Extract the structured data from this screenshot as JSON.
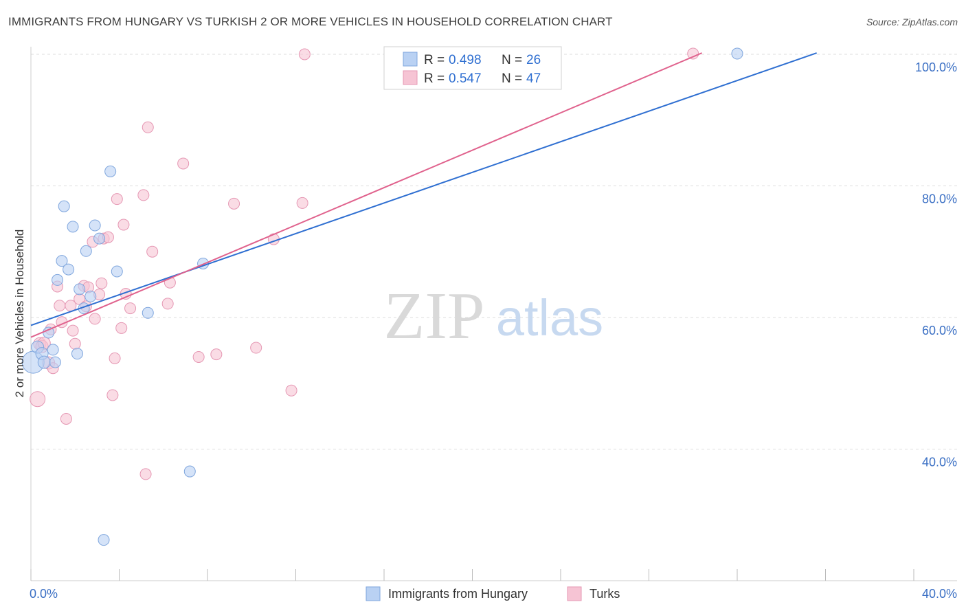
{
  "title": "IMMIGRANTS FROM HUNGARY VS TURKISH 2 OR MORE VEHICLES IN HOUSEHOLD CORRELATION CHART",
  "source": "Source: ZipAtlas.com",
  "watermark": {
    "zip": "ZIP",
    "atlas": "atlas"
  },
  "colors": {
    "blue": "#2f6fd1",
    "pink": "#e0628d",
    "blue_fill": "#b9d1f3",
    "pink_fill": "#f6c4d4",
    "tick": "#3a6fc4",
    "grid": "#dddddd"
  },
  "chart_data": {
    "type": "scatter",
    "title": "IMMIGRANTS FROM HUNGARY VS TURKISH 2 OR MORE VEHICLES IN HOUSEHOLD CORRELATION CHART",
    "xlabel": "",
    "ylabel": "2 or more Vehicles in Household",
    "xlim": [
      0,
      40
    ],
    "ylim": [
      20,
      102
    ],
    "x_tick_labels": [
      "0.0%",
      "40.0%"
    ],
    "y_ticks": [
      40,
      60,
      80,
      100
    ],
    "y_tick_labels": [
      "40.0%",
      "60.0%",
      "80.0%",
      "100.0%"
    ],
    "legend_top": [
      {
        "r_label": "R =",
        "r_value": "0.498",
        "n_label": "N =",
        "n_value": "26"
      },
      {
        "r_label": "R =",
        "r_value": "0.547",
        "n_label": "N =",
        "n_value": "47"
      }
    ],
    "series": [
      {
        "name": "Immigrants from Hungary",
        "color": "#2f6fd1",
        "trend": {
          "x": [
            0,
            35.6
          ],
          "y": [
            58.8,
            100.2
          ]
        },
        "points": [
          {
            "x": 0.1,
            "y": 53.2,
            "s": 16
          },
          {
            "x": 0.3,
            "y": 55.5,
            "s": 9
          },
          {
            "x": 0.5,
            "y": 54.5,
            "s": 9
          },
          {
            "x": 0.6,
            "y": 53.2,
            "s": 9
          },
          {
            "x": 0.8,
            "y": 57.7,
            "s": 8
          },
          {
            "x": 1.0,
            "y": 55.1,
            "s": 8
          },
          {
            "x": 1.1,
            "y": 53.2,
            "s": 8
          },
          {
            "x": 1.2,
            "y": 65.7,
            "s": 8
          },
          {
            "x": 1.4,
            "y": 68.6,
            "s": 8
          },
          {
            "x": 1.5,
            "y": 76.9,
            "s": 8
          },
          {
            "x": 1.7,
            "y": 67.3,
            "s": 8
          },
          {
            "x": 1.9,
            "y": 73.8,
            "s": 8
          },
          {
            "x": 2.1,
            "y": 54.5,
            "s": 8
          },
          {
            "x": 2.2,
            "y": 64.3,
            "s": 8
          },
          {
            "x": 2.4,
            "y": 61.4,
            "s": 8
          },
          {
            "x": 2.5,
            "y": 70.1,
            "s": 8
          },
          {
            "x": 2.7,
            "y": 63.2,
            "s": 8
          },
          {
            "x": 2.9,
            "y": 74.0,
            "s": 8
          },
          {
            "x": 3.1,
            "y": 72.0,
            "s": 8
          },
          {
            "x": 3.3,
            "y": 26.2,
            "s": 8
          },
          {
            "x": 3.6,
            "y": 82.2,
            "s": 8
          },
          {
            "x": 3.9,
            "y": 67.0,
            "s": 8
          },
          {
            "x": 5.3,
            "y": 60.7,
            "s": 8
          },
          {
            "x": 7.2,
            "y": 36.6,
            "s": 8
          },
          {
            "x": 7.8,
            "y": 68.2,
            "s": 8
          },
          {
            "x": 32.0,
            "y": 100.1,
            "s": 8
          }
        ]
      },
      {
        "name": "Turks",
        "color": "#e0628d",
        "trend": {
          "x": [
            0,
            30.4
          ],
          "y": [
            57.0,
            100.2
          ]
        },
        "points": [
          {
            "x": 0.3,
            "y": 47.6,
            "s": 11
          },
          {
            "x": 0.4,
            "y": 56.0,
            "s": 9
          },
          {
            "x": 0.5,
            "y": 55.6,
            "s": 9
          },
          {
            "x": 0.6,
            "y": 56.1,
            "s": 9
          },
          {
            "x": 0.8,
            "y": 53.1,
            "s": 9
          },
          {
            "x": 0.9,
            "y": 58.2,
            "s": 8
          },
          {
            "x": 1.0,
            "y": 52.3,
            "s": 8
          },
          {
            "x": 1.2,
            "y": 64.7,
            "s": 8
          },
          {
            "x": 1.3,
            "y": 61.8,
            "s": 8
          },
          {
            "x": 1.4,
            "y": 59.3,
            "s": 8
          },
          {
            "x": 1.6,
            "y": 44.6,
            "s": 8
          },
          {
            "x": 1.8,
            "y": 61.8,
            "s": 8
          },
          {
            "x": 1.9,
            "y": 58.0,
            "s": 8
          },
          {
            "x": 2.0,
            "y": 56.0,
            "s": 8
          },
          {
            "x": 2.2,
            "y": 62.8,
            "s": 8
          },
          {
            "x": 2.4,
            "y": 64.8,
            "s": 8
          },
          {
            "x": 2.5,
            "y": 61.7,
            "s": 8
          },
          {
            "x": 2.6,
            "y": 64.6,
            "s": 8
          },
          {
            "x": 2.8,
            "y": 71.5,
            "s": 8
          },
          {
            "x": 2.9,
            "y": 59.8,
            "s": 8
          },
          {
            "x": 3.1,
            "y": 63.5,
            "s": 8
          },
          {
            "x": 3.2,
            "y": 65.2,
            "s": 8
          },
          {
            "x": 3.3,
            "y": 72.0,
            "s": 8
          },
          {
            "x": 3.5,
            "y": 72.2,
            "s": 8
          },
          {
            "x": 3.7,
            "y": 48.2,
            "s": 8
          },
          {
            "x": 3.8,
            "y": 53.8,
            "s": 8
          },
          {
            "x": 3.9,
            "y": 78.0,
            "s": 8
          },
          {
            "x": 4.1,
            "y": 58.4,
            "s": 8
          },
          {
            "x": 4.2,
            "y": 74.1,
            "s": 8
          },
          {
            "x": 4.3,
            "y": 63.6,
            "s": 8
          },
          {
            "x": 4.5,
            "y": 61.4,
            "s": 8
          },
          {
            "x": 5.1,
            "y": 78.6,
            "s": 8
          },
          {
            "x": 5.2,
            "y": 36.2,
            "s": 8
          },
          {
            "x": 5.3,
            "y": 88.9,
            "s": 8
          },
          {
            "x": 5.5,
            "y": 70.0,
            "s": 8
          },
          {
            "x": 6.3,
            "y": 65.3,
            "s": 8
          },
          {
            "x": 6.2,
            "y": 62.1,
            "s": 8
          },
          {
            "x": 6.9,
            "y": 83.4,
            "s": 8
          },
          {
            "x": 7.6,
            "y": 54.0,
            "s": 8
          },
          {
            "x": 8.4,
            "y": 54.4,
            "s": 8
          },
          {
            "x": 9.2,
            "y": 77.3,
            "s": 8
          },
          {
            "x": 10.2,
            "y": 55.4,
            "s": 8
          },
          {
            "x": 11.0,
            "y": 71.9,
            "s": 8
          },
          {
            "x": 11.8,
            "y": 48.9,
            "s": 8
          },
          {
            "x": 12.3,
            "y": 77.4,
            "s": 8
          },
          {
            "x": 12.4,
            "y": 100.0,
            "s": 8
          },
          {
            "x": 30.0,
            "y": 100.1,
            "s": 8
          }
        ]
      }
    ]
  }
}
